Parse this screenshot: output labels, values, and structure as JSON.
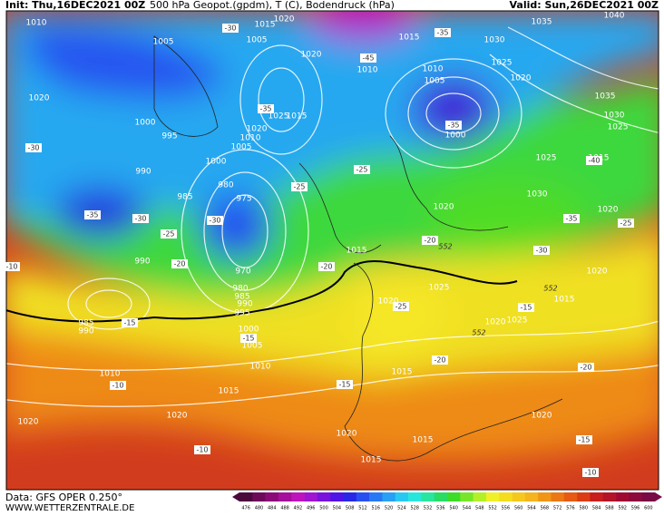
{
  "header": {
    "init": "Init: Thu,16DEC2021 00Z",
    "title": "500 hPa Geopot.(gpdm), T (C), Bodendruck (hPa)",
    "valid": "Valid: Sun,26DEC2021 00Z"
  },
  "footer": {
    "data": "Data: GFS OPER 0.250°",
    "site": "WWW.WETTERZENTRALE.DE"
  },
  "isobar_labels": [
    "1010",
    "1005",
    "1015",
    "1020",
    "1005",
    "1020",
    "1010",
    "1015",
    "1030",
    "1035",
    "1040",
    "1025",
    "1020",
    "1010",
    "1005",
    "1000",
    "1035",
    "1030",
    "1025",
    "1020",
    "1000",
    "995",
    "1025",
    "1015",
    "1020",
    "1010",
    "1005",
    "1000",
    "990",
    "980",
    "975",
    "985",
    "1025",
    "1015",
    "1030",
    "1020",
    "1020",
    "1015",
    "990",
    "970",
    "1020",
    "980",
    "985",
    "990",
    "995",
    "1025",
    "1020",
    "1015",
    "1000",
    "985",
    "990",
    "1020",
    "1025",
    "1005",
    "1010",
    "1010",
    "1015",
    "1015",
    "1020",
    "1020",
    "1020",
    "1020",
    "1015",
    "1015"
  ],
  "temperature_labels": [
    "-30",
    "-35",
    "-35",
    "-30",
    "-25",
    "-25",
    "-35",
    "-30",
    "-30",
    "-25",
    "-20",
    "-10",
    "-20",
    "-40",
    "-35",
    "-25",
    "-30",
    "-20",
    "-15",
    "-15",
    "-15",
    "-25",
    "-20",
    "-20",
    "-10",
    "-15",
    "-10",
    "-15",
    "-10",
    "-35",
    "-45"
  ],
  "height_labels": [
    "552",
    "552",
    "552"
  ],
  "legend": {
    "levels": [
      476,
      480,
      484,
      488,
      492,
      496,
      500,
      504,
      508,
      512,
      516,
      520,
      524,
      528,
      532,
      536,
      540,
      544,
      548,
      552,
      556,
      560,
      564,
      568,
      572,
      576,
      580,
      584,
      588,
      592,
      596,
      600
    ],
    "colors": [
      "#4b0a3c",
      "#6e0a5a",
      "#8c0a78",
      "#a50f9b",
      "#be14be",
      "#a014d2",
      "#7814dc",
      "#5014e6",
      "#2828e6",
      "#2850f0",
      "#2878f5",
      "#28a0f5",
      "#28c8f0",
      "#28e6dc",
      "#28e6a0",
      "#28dc64",
      "#3cdc28",
      "#78e628",
      "#b4f028",
      "#f0f028",
      "#f5dc1e",
      "#f5c81e",
      "#f5b41e",
      "#f09614",
      "#eb7814",
      "#e65a14",
      "#dc3c14",
      "#c81e1e",
      "#b41428",
      "#a00a32",
      "#8c0a3c",
      "#780a46"
    ]
  }
}
